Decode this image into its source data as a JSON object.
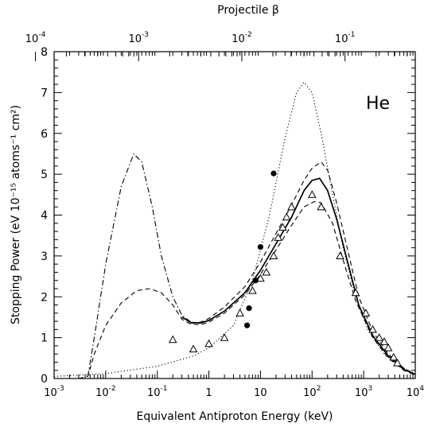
{
  "figure": {
    "top_axis_label": "Projectile β",
    "panel_label": "He"
  },
  "chart_data": {
    "type": "line",
    "xlabel": "Equivalent Antiproton Energy (keV)",
    "ylabel": "Stopping Power (eV 10⁻¹⁵ atoms⁻¹ cm²)",
    "xscale": "log",
    "xlim": [
      0.001,
      10000
    ],
    "ylim": [
      0,
      8
    ],
    "x_ticks": [
      {
        "value": 0.001,
        "base": "10",
        "exp": "-3"
      },
      {
        "value": 0.01,
        "base": "10",
        "exp": "-2"
      },
      {
        "value": 0.1,
        "base": "10",
        "exp": "-1"
      },
      {
        "value": 1,
        "base": "1",
        "exp": ""
      },
      {
        "value": 10,
        "base": "10",
        "exp": ""
      },
      {
        "value": 100,
        "base": "10",
        "exp": "2"
      },
      {
        "value": 1000,
        "base": "10",
        "exp": "3"
      },
      {
        "value": 10000,
        "base": "10",
        "exp": "4"
      }
    ],
    "y_ticks": [
      "0",
      "1",
      "2",
      "3",
      "4",
      "5",
      "6",
      "7",
      "8"
    ],
    "top_axis": {
      "label": "Projectile β",
      "scale": "log",
      "ticks": [
        {
          "value": 0.0001,
          "base": "10",
          "exp": "-4"
        },
        {
          "value": 0.001,
          "base": "10",
          "exp": "-3"
        },
        {
          "value": 0.01,
          "base": "10",
          "exp": "-2"
        },
        {
          "value": 0.1,
          "base": "10",
          "exp": "-1"
        }
      ]
    },
    "grid": false,
    "legend": "none",
    "series": [
      {
        "style": "solid",
        "points": [
          [
            0.3,
            1.5
          ],
          [
            0.45,
            1.37
          ],
          [
            0.7,
            1.36
          ],
          [
            1,
            1.42
          ],
          [
            2,
            1.65
          ],
          [
            5,
            2.1
          ],
          [
            10,
            2.65
          ],
          [
            20,
            3.3
          ],
          [
            40,
            3.95
          ],
          [
            70,
            4.6
          ],
          [
            100,
            4.85
          ],
          [
            140,
            4.9
          ],
          [
            200,
            4.6
          ],
          [
            300,
            3.9
          ],
          [
            500,
            2.8
          ],
          [
            800,
            1.8
          ],
          [
            1500,
            1.05
          ],
          [
            3000,
            0.55
          ],
          [
            6000,
            0.22
          ],
          [
            10000,
            0.1
          ]
        ]
      },
      {
        "style": "dashed",
        "points": [
          [
            0.003,
            0
          ],
          [
            0.0045,
            0.05
          ],
          [
            0.006,
            0.6
          ],
          [
            0.01,
            1.3
          ],
          [
            0.02,
            1.85
          ],
          [
            0.04,
            2.15
          ],
          [
            0.07,
            2.2
          ],
          [
            0.12,
            2.1
          ],
          [
            0.2,
            1.8
          ],
          [
            0.3,
            1.45
          ],
          [
            0.45,
            1.33
          ],
          [
            0.7,
            1.32
          ],
          [
            1,
            1.38
          ],
          [
            2,
            1.6
          ],
          [
            5,
            2.05
          ],
          [
            10,
            2.55
          ],
          [
            20,
            3.15
          ],
          [
            40,
            3.75
          ],
          [
            70,
            4.2
          ],
          [
            110,
            4.33
          ],
          [
            150,
            4.3
          ],
          [
            250,
            3.8
          ],
          [
            400,
            2.9
          ],
          [
            700,
            1.9
          ],
          [
            1500,
            1.0
          ],
          [
            3000,
            0.5
          ],
          [
            6000,
            0.2
          ],
          [
            10000,
            0.08
          ]
        ]
      },
      {
        "style": "dashed",
        "points": [
          [
            0.45,
            1.35
          ],
          [
            0.7,
            1.38
          ],
          [
            1,
            1.47
          ],
          [
            2,
            1.75
          ],
          [
            5,
            2.25
          ],
          [
            10,
            2.85
          ],
          [
            20,
            3.55
          ],
          [
            40,
            4.25
          ],
          [
            70,
            4.85
          ],
          [
            100,
            5.15
          ],
          [
            150,
            5.3
          ],
          [
            200,
            5.1
          ],
          [
            300,
            4.3
          ],
          [
            500,
            3.1
          ],
          [
            800,
            2.0
          ],
          [
            1500,
            1.15
          ],
          [
            3000,
            0.6
          ],
          [
            6000,
            0.25
          ],
          [
            10000,
            0.1
          ]
        ]
      },
      {
        "style": "dash-dot",
        "points": [
          [
            0.0045,
            0.05
          ],
          [
            0.006,
            1.0
          ],
          [
            0.01,
            2.8
          ],
          [
            0.02,
            4.7
          ],
          [
            0.035,
            5.5
          ],
          [
            0.05,
            5.3
          ],
          [
            0.08,
            4.2
          ],
          [
            0.12,
            3.0
          ],
          [
            0.2,
            2.0
          ],
          [
            0.3,
            1.55
          ],
          [
            0.45,
            1.38
          ]
        ]
      },
      {
        "style": "dotted",
        "points": [
          [
            0.001,
            0.05
          ],
          [
            0.01,
            0.12
          ],
          [
            0.1,
            0.3
          ],
          [
            0.5,
            0.55
          ],
          [
            1,
            0.75
          ],
          [
            3,
            1.3
          ],
          [
            7,
            2.4
          ],
          [
            15,
            4.0
          ],
          [
            30,
            5.9
          ],
          [
            50,
            7.0
          ],
          [
            70,
            7.25
          ],
          [
            100,
            7.0
          ],
          [
            150,
            6.0
          ],
          [
            250,
            4.5
          ],
          [
            400,
            3.2
          ],
          [
            700,
            2.0
          ],
          [
            1200,
            1.2
          ],
          [
            2500,
            0.6
          ],
          [
            5000,
            0.3
          ],
          [
            10000,
            0.12
          ]
        ]
      }
    ],
    "markers": [
      {
        "shape": "triangle-open",
        "points": [
          [
            0.2,
            0.95
          ],
          [
            0.5,
            0.72
          ],
          [
            1,
            0.85
          ],
          [
            2,
            1.0
          ],
          [
            4,
            1.6
          ],
          [
            7,
            2.15
          ],
          [
            10,
            2.45
          ],
          [
            13,
            2.6
          ],
          [
            18,
            3.0
          ],
          [
            22,
            3.45
          ],
          [
            27,
            3.7
          ],
          [
            32,
            3.95
          ],
          [
            40,
            4.2
          ],
          [
            100,
            4.5
          ],
          [
            150,
            4.2
          ],
          [
            350,
            3.0
          ],
          [
            700,
            2.1
          ],
          [
            1100,
            1.6
          ],
          [
            1500,
            1.2
          ],
          [
            2000,
            1.0
          ],
          [
            2500,
            0.9
          ],
          [
            3000,
            0.75
          ],
          [
            3800,
            0.52
          ],
          [
            4500,
            0.38
          ]
        ]
      },
      {
        "shape": "circle-filled",
        "points": [
          [
            5.5,
            1.3
          ],
          [
            6,
            1.72
          ],
          [
            8,
            2.4
          ],
          [
            10,
            3.22
          ],
          [
            18,
            5.02
          ]
        ]
      }
    ]
  }
}
